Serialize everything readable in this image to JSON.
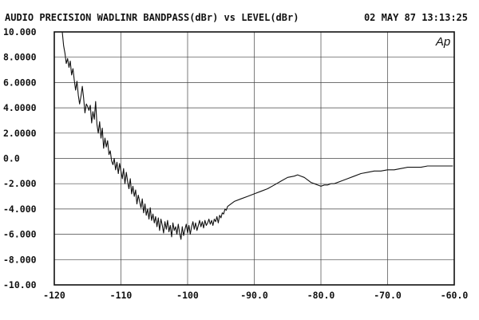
{
  "header": {
    "title": "AUDIO PRECISION WADLINR BANDPASS(dBr) vs LEVEL(dBr)",
    "timestamp": "02 MAY 87 13:13:25"
  },
  "logo": "Ap",
  "colors": {
    "ink": "#111111",
    "grid": "#444444",
    "paper": "#ffffff"
  },
  "chart_data": {
    "type": "line",
    "title": "AUDIO PRECISION WADLINR BANDPASS(dBr) vs LEVEL(dBr)",
    "xlim": [
      -120,
      -60
    ],
    "ylim": [
      -10,
      10
    ],
    "x_ticks": [
      -120,
      -110,
      -100,
      -90,
      -80,
      -70,
      -60
    ],
    "x_tick_labels": [
      "-120",
      "-110",
      "-100",
      "-90.0",
      "-80.0",
      "-70.0",
      "-60.0"
    ],
    "y_ticks": [
      10,
      8,
      6,
      4,
      2,
      0,
      -2,
      -4,
      -6,
      -8,
      -10
    ],
    "y_tick_labels": [
      "10.000",
      "8.0000",
      "6.0000",
      "4.0000",
      "2.0000",
      "0.0",
      "-2.000",
      "-4.000",
      "-6.000",
      "-8.000",
      "-10.00"
    ],
    "grid": true,
    "series": [
      {
        "x": [
          -118.8,
          -118.6,
          -118.4,
          -118.2,
          -118.0,
          -117.8,
          -117.6,
          -117.4,
          -117.2,
          -117.0,
          -116.8,
          -116.6,
          -116.4,
          -116.2,
          -116.0,
          -115.8,
          -115.6,
          -115.4,
          -115.2,
          -115.0,
          -114.8,
          -114.6,
          -114.4,
          -114.2,
          -114.0,
          -113.8,
          -113.6,
          -113.4,
          -113.2,
          -113.0,
          -112.8,
          -112.6,
          -112.4,
          -112.2,
          -112.0,
          -111.8,
          -111.6,
          -111.4,
          -111.2,
          -111.0,
          -110.8,
          -110.6,
          -110.4,
          -110.2,
          -110.0,
          -109.8,
          -109.6,
          -109.4,
          -109.2,
          -109.0,
          -108.8,
          -108.6,
          -108.4,
          -108.2,
          -108.0,
          -107.8,
          -107.6,
          -107.4,
          -107.2,
          -107.0,
          -106.8,
          -106.6,
          -106.4,
          -106.2,
          -106.0,
          -105.8,
          -105.6,
          -105.4,
          -105.2,
          -105.0,
          -104.8,
          -104.6,
          -104.4,
          -104.2,
          -104.0,
          -103.8,
          -103.6,
          -103.4,
          -103.2,
          -103.0,
          -102.8,
          -102.6,
          -102.4,
          -102.2,
          -102.0,
          -101.8,
          -101.6,
          -101.4,
          -101.2,
          -101.0,
          -100.8,
          -100.6,
          -100.4,
          -100.2,
          -100.0,
          -99.8,
          -99.6,
          -99.4,
          -99.2,
          -99.0,
          -98.8,
          -98.6,
          -98.4,
          -98.2,
          -98.0,
          -97.8,
          -97.6,
          -97.4,
          -97.2,
          -97.0,
          -96.8,
          -96.6,
          -96.4,
          -96.2,
          -96.0,
          -95.8,
          -95.6,
          -95.4,
          -95.2,
          -95.0,
          -94.8,
          -94.6,
          -94.4,
          -94.2,
          -94.0,
          -93.0,
          -92.0,
          -91.0,
          -90.0,
          -89.0,
          -88.0,
          -87.0,
          -86.0,
          -85.0,
          -84.0,
          -83.5,
          -83.0,
          -82.5,
          -82.0,
          -81.5,
          -81.0,
          -80.5,
          -80.0,
          -79.5,
          -79.0,
          -78.5,
          -78.0,
          -77.0,
          -76.0,
          -75.0,
          -74.0,
          -73.0,
          -72.0,
          -71.0,
          -70.0,
          -69.0,
          -68.0,
          -67.0,
          -66.0,
          -65.0,
          -64.0,
          -63.0,
          -62.0,
          -61.0,
          -60.2
        ],
        "values": [
          10.0,
          8.9,
          8.3,
          7.5,
          7.9,
          7.2,
          7.7,
          6.6,
          7.1,
          6.2,
          5.4,
          6.1,
          5.0,
          4.3,
          4.9,
          5.7,
          4.8,
          3.6,
          4.3,
          4.1,
          3.8,
          4.2,
          2.8,
          3.7,
          3.1,
          4.5,
          2.7,
          2.0,
          2.9,
          1.6,
          2.4,
          0.8,
          1.6,
          0.9,
          1.4,
          0.3,
          0.6,
          -0.2,
          -0.5,
          0.0,
          -0.9,
          -0.3,
          -1.2,
          -0.4,
          -1.0,
          -1.6,
          -0.8,
          -2.0,
          -1.1,
          -1.8,
          -2.4,
          -1.6,
          -2.8,
          -2.2,
          -3.0,
          -2.5,
          -3.6,
          -2.9,
          -3.4,
          -3.9,
          -3.2,
          -4.3,
          -3.6,
          -4.5,
          -4.0,
          -4.8,
          -3.9,
          -4.9,
          -4.4,
          -5.1,
          -4.6,
          -5.4,
          -4.7,
          -5.7,
          -4.8,
          -5.3,
          -5.9,
          -5.0,
          -5.6,
          -4.9,
          -5.8,
          -5.3,
          -6.2,
          -5.1,
          -5.7,
          -5.4,
          -6.0,
          -5.2,
          -5.9,
          -6.4,
          -5.4,
          -6.1,
          -5.6,
          -5.2,
          -5.9,
          -5.3,
          -6.0,
          -5.4,
          -5.0,
          -5.6,
          -5.1,
          -5.7,
          -5.3,
          -4.9,
          -5.4,
          -5.0,
          -5.5,
          -4.9,
          -5.3,
          -5.1,
          -4.8,
          -5.2,
          -4.9,
          -5.3,
          -4.8,
          -5.0,
          -4.6,
          -5.1,
          -4.5,
          -4.7,
          -4.3,
          -4.4,
          -4.0,
          -4.1,
          -3.8,
          -3.4,
          -3.2,
          -3.0,
          -2.8,
          -2.6,
          -2.4,
          -2.1,
          -1.8,
          -1.5,
          -1.4,
          -1.3,
          -1.4,
          -1.5,
          -1.7,
          -1.9,
          -2.0,
          -2.1,
          -2.2,
          -2.1,
          -2.1,
          -2.0,
          -2.0,
          -1.8,
          -1.6,
          -1.4,
          -1.2,
          -1.1,
          -1.0,
          -1.0,
          -0.9,
          -0.9,
          -0.8,
          -0.7,
          -0.7,
          -0.7,
          -0.6,
          -0.6,
          -0.6,
          -0.6,
          -0.6
        ]
      }
    ]
  }
}
